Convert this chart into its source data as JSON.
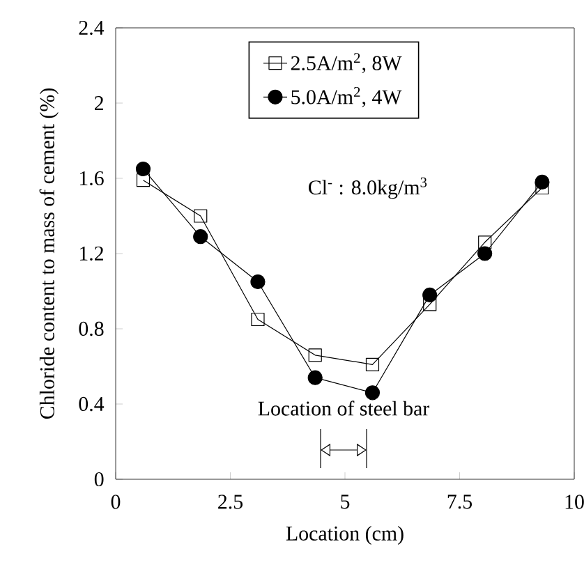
{
  "chart_data": {
    "type": "line",
    "xlabel": "Location (cm)",
    "ylabel": "Chloride content to mass of cement (%)",
    "x": [
      0.6,
      1.85,
      3.1,
      4.35,
      5.6,
      6.85,
      8.05,
      9.3
    ],
    "series": [
      {
        "name": "2.5A/m$^{2}$, 8W",
        "color": "#000000",
        "marker": "square",
        "values": [
          1.59,
          1.4,
          0.85,
          0.66,
          0.61,
          0.93,
          1.26,
          1.55
        ]
      },
      {
        "name": "5.0A/m$^{2}$, 4W",
        "color": "#000000",
        "marker": "circle",
        "values": [
          1.65,
          1.29,
          1.05,
          0.54,
          0.46,
          0.98,
          1.2,
          1.58
        ]
      }
    ],
    "xlim": [
      0,
      10
    ],
    "xticks": [
      0,
      2.5,
      5,
      7.5,
      10
    ],
    "ylim": [
      0,
      2.4
    ],
    "yticks": [
      0,
      0.4,
      0.8,
      1.2,
      1.6,
      2,
      2.4
    ],
    "annotations": [
      "Cl$^{-}$ : 8.0kg/m$^{3}$",
      "Location of steel bar"
    ],
    "legend": "top",
    "grid": false,
    "line_style": "solid"
  }
}
